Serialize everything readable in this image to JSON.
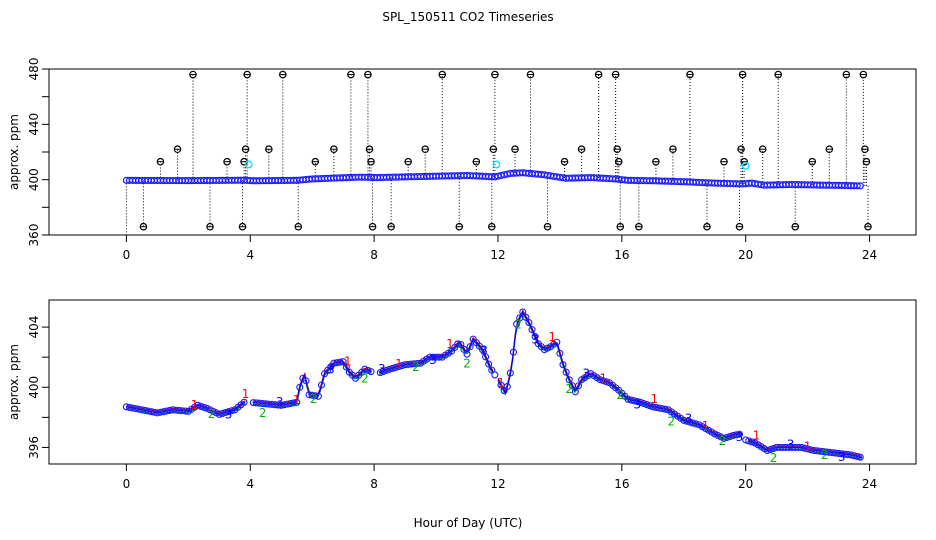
{
  "chart_data": [
    {
      "type": "scatter",
      "title": "SPL_150511  CO2 Timeseries",
      "xlabel": "",
      "ylabel": "approx. ppm",
      "xlim": [
        -2.5,
        25.5
      ],
      "ylim": [
        360,
        480
      ],
      "xticks": [
        0,
        4,
        8,
        12,
        16,
        20,
        24
      ],
      "yticks": [
        360,
        400,
        440,
        480
      ],
      "ytick_labels": [
        "360",
        "400",
        "440",
        "480"
      ],
      "baseline_series": {
        "name": "CO2 baseline",
        "color": "#1a1aff",
        "points": [
          [
            0.0,
            399.5
          ],
          [
            2.0,
            399.3
          ],
          [
            3.8,
            399.6
          ],
          [
            4.1,
            399.2
          ],
          [
            5.5,
            399.5
          ],
          [
            6.0,
            400.5
          ],
          [
            7.5,
            401.8
          ],
          [
            8.1,
            401.5
          ],
          [
            9.0,
            402.0
          ],
          [
            10.0,
            402.5
          ],
          [
            11.0,
            403.0
          ],
          [
            11.9,
            402.0
          ],
          [
            12.4,
            404.5
          ],
          [
            12.8,
            405.0
          ],
          [
            13.5,
            403.5
          ],
          [
            14.2,
            401.0
          ],
          [
            15.0,
            401.5
          ],
          [
            15.8,
            400.5
          ],
          [
            16.2,
            399.5
          ],
          [
            17.0,
            399.2
          ],
          [
            18.0,
            398.5
          ],
          [
            19.0,
            397.5
          ],
          [
            19.9,
            396.9
          ],
          [
            20.2,
            397.5
          ],
          [
            20.6,
            396.0
          ],
          [
            21.5,
            396.5
          ],
          [
            22.5,
            396.0
          ],
          [
            23.2,
            395.8
          ],
          [
            23.7,
            395.5
          ]
        ]
      },
      "cyan_points": [
        [
          3.95,
          411
        ],
        [
          11.95,
          411
        ],
        [
          20.0,
          410
        ]
      ],
      "spike_points": [
        [
          0.55,
          366
        ],
        [
          1.1,
          413
        ],
        [
          1.65,
          422
        ],
        [
          2.15,
          476
        ],
        [
          2.7,
          366
        ],
        [
          3.25,
          413
        ],
        [
          3.75,
          366
        ],
        [
          3.8,
          413
        ],
        [
          3.85,
          422
        ],
        [
          3.9,
          476
        ],
        [
          4.6,
          422
        ],
        [
          5.05,
          476
        ],
        [
          5.55,
          366
        ],
        [
          6.1,
          413
        ],
        [
          6.7,
          422
        ],
        [
          7.25,
          476
        ],
        [
          7.8,
          476
        ],
        [
          7.85,
          422
        ],
        [
          7.9,
          413
        ],
        [
          7.95,
          366
        ],
        [
          8.55,
          366
        ],
        [
          9.1,
          413
        ],
        [
          9.65,
          422
        ],
        [
          10.2,
          476
        ],
        [
          10.75,
          366
        ],
        [
          11.3,
          413
        ],
        [
          11.8,
          366
        ],
        [
          11.85,
          422
        ],
        [
          11.9,
          476
        ],
        [
          12.55,
          422
        ],
        [
          13.05,
          476
        ],
        [
          13.6,
          366
        ],
        [
          14.15,
          413
        ],
        [
          14.7,
          422
        ],
        [
          15.25,
          476
        ],
        [
          15.8,
          476
        ],
        [
          15.85,
          422
        ],
        [
          15.9,
          413
        ],
        [
          15.95,
          366
        ],
        [
          16.55,
          366
        ],
        [
          17.1,
          413
        ],
        [
          17.65,
          422
        ],
        [
          18.2,
          476
        ],
        [
          18.75,
          366
        ],
        [
          19.3,
          413
        ],
        [
          19.8,
          366
        ],
        [
          19.85,
          422
        ],
        [
          19.9,
          476
        ],
        [
          19.95,
          413
        ],
        [
          20.55,
          422
        ],
        [
          21.05,
          476
        ],
        [
          21.6,
          366
        ],
        [
          22.15,
          413
        ],
        [
          22.7,
          422
        ],
        [
          23.25,
          476
        ],
        [
          23.8,
          476
        ],
        [
          23.85,
          422
        ],
        [
          23.9,
          413
        ],
        [
          23.95,
          366
        ]
      ]
    },
    {
      "type": "scatter",
      "title": "",
      "xlabel": "Hour of Day (UTC)",
      "ylabel": "approx. ppm",
      "xlim": [
        -2.5,
        25.5
      ],
      "ylim": [
        394.9,
        405.8
      ],
      "xticks": [
        0,
        4,
        8,
        12,
        16,
        20,
        24
      ],
      "yticks": [
        396,
        400,
        404
      ],
      "ytick_labels": [
        "396",
        "400",
        "404"
      ],
      "series": [
        {
          "name": "1",
          "color": "#ff0000",
          "offset": 0.25
        },
        {
          "name": "2",
          "color": "#00b400",
          "offset": -0.3
        },
        {
          "name": "3",
          "color": "#0000ff",
          "offset": 0.0
        }
      ],
      "points": [
        [
          0.0,
          398.7
        ],
        [
          0.5,
          398.5
        ],
        [
          1.0,
          398.3
        ],
        [
          1.5,
          398.5
        ],
        [
          2.0,
          398.4
        ],
        [
          2.3,
          398.8
        ],
        [
          2.6,
          398.6
        ],
        [
          3.0,
          398.2
        ],
        [
          3.5,
          398.5
        ],
        [
          3.8,
          399.0
        ],
        [
          4.0,
          399.0
        ],
        [
          4.5,
          398.9
        ],
        [
          5.0,
          398.8
        ],
        [
          5.5,
          399.0
        ],
        [
          5.6,
          400.0
        ],
        [
          5.75,
          400.9
        ],
        [
          5.9,
          399.5
        ],
        [
          6.2,
          399.4
        ],
        [
          6.4,
          400.9
        ],
        [
          6.7,
          401.6
        ],
        [
          7.0,
          401.7
        ],
        [
          7.2,
          401.0
        ],
        [
          7.4,
          400.6
        ],
        [
          7.7,
          401.2
        ],
        [
          7.95,
          401.0
        ],
        [
          8.1,
          400.9
        ],
        [
          8.5,
          401.2
        ],
        [
          9.0,
          401.5
        ],
        [
          9.5,
          401.6
        ],
        [
          9.8,
          402.0
        ],
        [
          10.2,
          402.0
        ],
        [
          10.5,
          402.4
        ],
        [
          10.75,
          403.0
        ],
        [
          11.0,
          402.2
        ],
        [
          11.2,
          403.2
        ],
        [
          11.5,
          402.5
        ],
        [
          11.75,
          401.3
        ],
        [
          12.0,
          400.5
        ],
        [
          12.25,
          399.6
        ],
        [
          12.45,
          401.4
        ],
        [
          12.6,
          404.2
        ],
        [
          12.8,
          405.0
        ],
        [
          13.0,
          404.3
        ],
        [
          13.3,
          402.9
        ],
        [
          13.5,
          402.5
        ],
        [
          13.7,
          402.7
        ],
        [
          13.9,
          403.0
        ],
        [
          14.1,
          401.5
        ],
        [
          14.3,
          400.5
        ],
        [
          14.5,
          399.7
        ],
        [
          14.7,
          400.5
        ],
        [
          15.0,
          400.9
        ],
        [
          15.3,
          400.5
        ],
        [
          15.6,
          400.3
        ],
        [
          15.9,
          399.8
        ],
        [
          16.2,
          399.2
        ],
        [
          16.6,
          399.0
        ],
        [
          17.0,
          398.7
        ],
        [
          17.5,
          398.5
        ],
        [
          18.0,
          397.8
        ],
        [
          18.5,
          397.5
        ],
        [
          19.0,
          396.9
        ],
        [
          19.3,
          396.6
        ],
        [
          19.6,
          396.8
        ],
        [
          19.85,
          396.9
        ],
        [
          20.0,
          396.5
        ],
        [
          20.3,
          396.3
        ],
        [
          20.7,
          395.8
        ],
        [
          21.0,
          396.0
        ],
        [
          21.4,
          396.0
        ],
        [
          21.8,
          396.0
        ],
        [
          22.2,
          395.8
        ],
        [
          22.6,
          395.7
        ],
        [
          23.0,
          395.6
        ],
        [
          23.4,
          395.5
        ],
        [
          23.8,
          395.3
        ]
      ]
    }
  ]
}
